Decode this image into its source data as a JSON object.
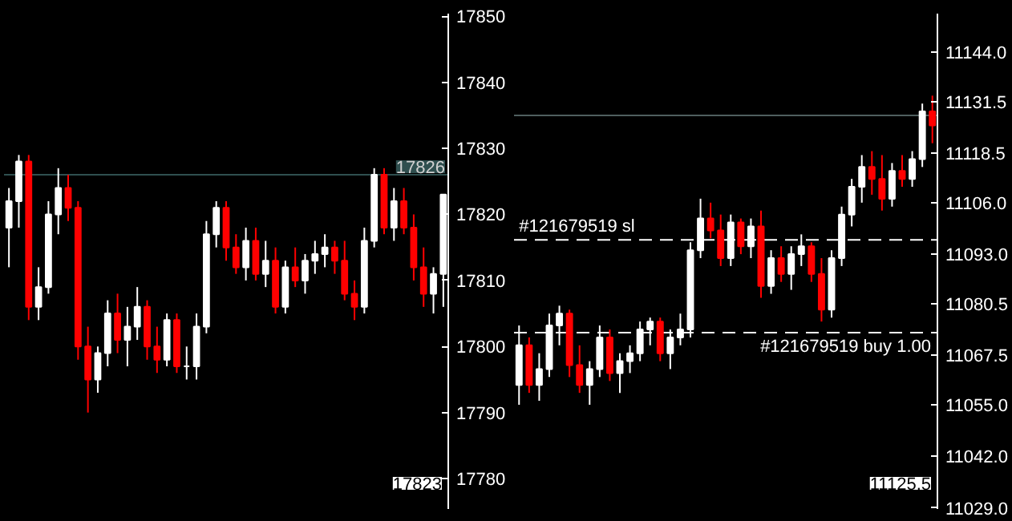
{
  "chart_data": [
    {
      "type": "candlestick",
      "categories": [
        null,
        null,
        null,
        null,
        null,
        null,
        null,
        null,
        null,
        null,
        null,
        null,
        null,
        null,
        null,
        null,
        null,
        null,
        null,
        null,
        null,
        null,
        null,
        null,
        null,
        null,
        null,
        null,
        null,
        null,
        null,
        null,
        null,
        null,
        null,
        null,
        null,
        null,
        null,
        null,
        null,
        null,
        null,
        null,
        null
      ],
      "ohlc": [
        [
          17818,
          17824,
          17812,
          17822
        ],
        [
          17822,
          17829,
          17818,
          17828
        ],
        [
          17828,
          17829,
          17804,
          17806
        ],
        [
          17806,
          17812,
          17804,
          17809
        ],
        [
          17809,
          17822,
          17808,
          17820
        ],
        [
          17820,
          17827,
          17817,
          17824
        ],
        [
          17824,
          17826,
          17819,
          17821
        ],
        [
          17821,
          17822,
          17798,
          17800
        ],
        [
          17800,
          17803,
          17790,
          17795
        ],
        [
          17795,
          17800,
          17793,
          17799
        ],
        [
          17799,
          17807,
          17797,
          17805
        ],
        [
          17805,
          17808,
          17799,
          17801
        ],
        [
          17801,
          17806,
          17797,
          17803
        ],
        [
          17803,
          17809,
          17801,
          17806
        ],
        [
          17806,
          17807,
          17798,
          17800
        ],
        [
          17800,
          17803,
          17796,
          17798
        ],
        [
          17798,
          17805,
          17797,
          17804
        ],
        [
          17804,
          17805,
          17796,
          17797
        ],
        [
          17797,
          17800,
          17795,
          17797
        ],
        [
          17797,
          17805,
          17795,
          17803
        ],
        [
          17803,
          17819,
          17802,
          17817
        ],
        [
          17817,
          17822,
          17815,
          17821
        ],
        [
          17821,
          17822,
          17813,
          17815
        ],
        [
          17815,
          17817,
          17811,
          17812
        ],
        [
          17812,
          17818,
          17810,
          17816
        ],
        [
          17816,
          17818,
          17810,
          17811
        ],
        [
          17811,
          17816,
          17809,
          17813
        ],
        [
          17813,
          17815,
          17805,
          17806
        ],
        [
          17806,
          17813,
          17805,
          17812
        ],
        [
          17812,
          17815,
          17809,
          17810
        ],
        [
          17810,
          17814,
          17808,
          17813
        ],
        [
          17813,
          17816,
          17811,
          17814
        ],
        [
          17814,
          17817,
          17812,
          17815
        ],
        [
          17815,
          17816,
          17811,
          17813
        ],
        [
          17813,
          17816,
          17807,
          17808
        ],
        [
          17808,
          17810,
          17804,
          17806
        ],
        [
          17806,
          17818,
          17805,
          17816
        ],
        [
          17816,
          17827,
          17815,
          17826
        ],
        [
          17826,
          17827,
          17817,
          17818
        ],
        [
          17818,
          17824,
          17816,
          17822
        ],
        [
          17822,
          17824,
          17817,
          17818
        ],
        [
          17818,
          17820,
          17810,
          17812
        ],
        [
          17812,
          17815,
          17806,
          17808
        ],
        [
          17808,
          17812,
          17805,
          17811
        ],
        [
          17811,
          17823,
          17806,
          17823
        ]
      ],
      "colors": [
        "#ffffff",
        "#ffffff",
        "#ff0000",
        "#ffffff",
        "#ffffff",
        "#ffffff",
        "#ff0000",
        "#ff0000",
        "#ff0000",
        "#ffffff",
        "#ffffff",
        "#ff0000",
        "#ffffff",
        "#ffffff",
        "#ff0000",
        "#ff0000",
        "#ffffff",
        "#ff0000",
        "#ffffff",
        "#ffffff",
        "#ffffff",
        "#ffffff",
        "#ff0000",
        "#ff0000",
        "#ffffff",
        "#ff0000",
        "#ffffff",
        "#ff0000",
        "#ffffff",
        "#ff0000",
        "#ffffff",
        "#ffffff",
        "#ffffff",
        "#ff0000",
        "#ff0000",
        "#ff0000",
        "#ffffff",
        "#ffffff",
        "#ff0000",
        "#ffffff",
        "#ff0000",
        "#ff0000",
        "#ff0000",
        "#ffffff",
        "#ffffff"
      ],
      "ylim": [
        17775.4,
        17850.4
      ],
      "yticks": [
        17780,
        17790,
        17800,
        17810,
        17820,
        17830,
        17840,
        17850
      ],
      "tick_labels": "y",
      "grid": false,
      "ref_lines": [
        {
          "axis": "y",
          "value": 17826,
          "label": "17826",
          "color": "#2f4f4f"
        }
      ],
      "annotations": [
        "17823"
      ]
    },
    {
      "type": "candlestick",
      "categories": [
        null,
        null,
        null,
        null,
        null,
        null,
        null,
        null,
        null,
        null,
        null,
        null,
        null,
        null,
        null,
        null,
        null,
        null,
        null,
        null,
        null,
        null,
        null,
        null,
        null,
        null,
        null,
        null,
        null,
        null,
        null,
        null,
        null,
        null,
        null,
        null,
        null,
        null,
        null,
        null,
        null,
        null
      ],
      "ohlc": [
        [
          11060,
          11075,
          11055,
          11070
        ],
        [
          11070,
          11072,
          11058,
          11060
        ],
        [
          11060,
          11068,
          11056,
          11064
        ],
        [
          11064,
          11078,
          11062,
          11075
        ],
        [
          11075,
          11080,
          11070,
          11078
        ],
        [
          11078,
          11079,
          11062,
          11065
        ],
        [
          11065,
          11070,
          11058,
          11060
        ],
        [
          11060,
          11066,
          11055,
          11064
        ],
        [
          11064,
          11075,
          11062,
          11072
        ],
        [
          11072,
          11074,
          11061,
          11063
        ],
        [
          11063,
          11068,
          11058,
          11066
        ],
        [
          11066,
          11070,
          11063,
          11068
        ],
        [
          11068,
          11076,
          11066,
          11074
        ],
        [
          11074,
          11077,
          11070,
          11076
        ],
        [
          11076,
          11077,
          11066,
          11068
        ],
        [
          11068,
          11074,
          11064,
          11072
        ],
        [
          11072,
          11078,
          11070,
          11074
        ],
        [
          11074,
          11096,
          11072,
          11094
        ],
        [
          11094,
          11107,
          11092,
          11102
        ],
        [
          11102,
          11106,
          11097,
          11099
        ],
        [
          11099,
          11103,
          11090,
          11092
        ],
        [
          11092,
          11103,
          11090,
          11101
        ],
        [
          11101,
          11102,
          11093,
          11095
        ],
        [
          11095,
          11102,
          11092,
          11100
        ],
        [
          11100,
          11104,
          11082,
          11085
        ],
        [
          11085,
          11094,
          11083,
          11092
        ],
        [
          11092,
          11095,
          11086,
          11088
        ],
        [
          11088,
          11095,
          11084,
          11093
        ],
        [
          11093,
          11098,
          11090,
          11095
        ],
        [
          11095,
          11096,
          11086,
          11088
        ],
        [
          11088,
          11092,
          11076,
          11079
        ],
        [
          11079,
          11094,
          11077,
          11092
        ],
        [
          11092,
          11105,
          11090,
          11103
        ],
        [
          11103,
          11112,
          11100,
          11110
        ],
        [
          11110,
          11118,
          11106,
          11115
        ],
        [
          11115,
          11119,
          11108,
          11112
        ],
        [
          11112,
          11118,
          11104,
          11107
        ],
        [
          11107,
          11116,
          11105,
          11114
        ],
        [
          11114,
          11118,
          11110,
          11112
        ],
        [
          11112,
          11119,
          11110,
          11117
        ],
        [
          11117,
          11131,
          11115,
          11129
        ],
        [
          11129,
          11133,
          11121,
          11125.5
        ]
      ],
      "colors": [
        "#ffffff",
        "#ff0000",
        "#ffffff",
        "#ffffff",
        "#ffffff",
        "#ff0000",
        "#ff0000",
        "#ffffff",
        "#ffffff",
        "#ff0000",
        "#ffffff",
        "#ffffff",
        "#ffffff",
        "#ffffff",
        "#ff0000",
        "#ffffff",
        "#ffffff",
        "#ffffff",
        "#ffffff",
        "#ff0000",
        "#ff0000",
        "#ffffff",
        "#ff0000",
        "#ffffff",
        "#ff0000",
        "#ffffff",
        "#ff0000",
        "#ffffff",
        "#ffffff",
        "#ff0000",
        "#ff0000",
        "#ffffff",
        "#ffffff",
        "#ffffff",
        "#ffffff",
        "#ff0000",
        "#ff0000",
        "#ffffff",
        "#ff0000",
        "#ffffff",
        "#ffffff",
        "#ff0000"
      ],
      "ylim": [
        11028.7,
        11153.7
      ],
      "yticks": [
        {
          "value": 11029,
          "label": "11029.0"
        },
        {
          "value": 11042,
          "label": "11042.0"
        },
        {
          "value": 11055,
          "label": "11055.0"
        },
        {
          "value": 11067.5,
          "label": "11067.5"
        },
        {
          "value": 11080.5,
          "label": "11080.5"
        },
        {
          "value": 11093,
          "label": "11093.0"
        },
        {
          "value": 11106,
          "label": "11106.0"
        },
        {
          "value": 11118.5,
          "label": "11118.5"
        },
        {
          "value": 11131.5,
          "label": "11131.5"
        },
        {
          "value": 11144,
          "label": "11144.0"
        }
      ],
      "tick_labels": "y",
      "grid": false,
      "ref_lines": [
        {
          "axis": "y",
          "value": 11128,
          "color": "#4f5f5f"
        },
        {
          "axis": "y",
          "value": 11096.6,
          "label": "#121679519 sl",
          "color": "#ffffff",
          "line_style": "dashed"
        },
        {
          "axis": "y",
          "value": 11073.2,
          "label": "#121679519 buy 1.00",
          "color": "#ffffff",
          "line_style": "dashed"
        }
      ],
      "annotations": [
        "11125.5"
      ]
    }
  ]
}
